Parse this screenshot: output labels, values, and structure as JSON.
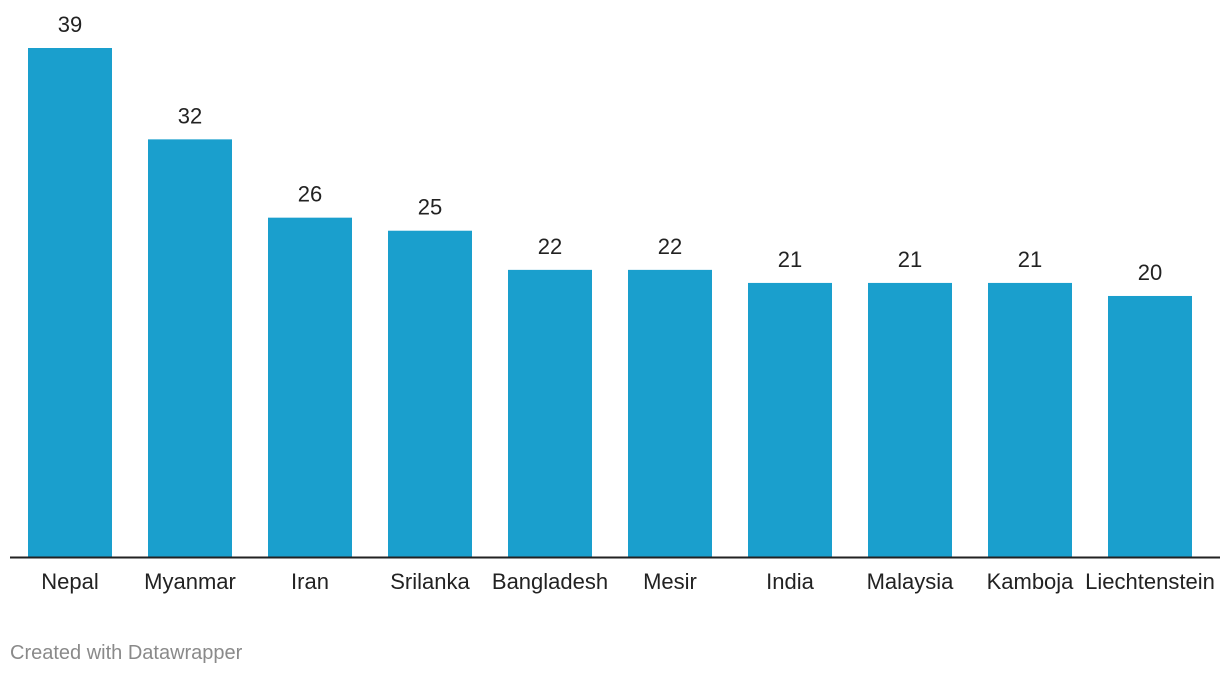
{
  "chart_data": {
    "type": "bar",
    "categories": [
      "Nepal",
      "Myanmar",
      "Iran",
      "Srilanka",
      "Bangladesh",
      "Mesir",
      "India",
      "Malaysia",
      "Kamboja",
      "Liechtenstein"
    ],
    "values": [
      39,
      32,
      26,
      25,
      22,
      22,
      21,
      21,
      21,
      20
    ],
    "title": "",
    "xlabel": "",
    "ylabel": "",
    "ylim": [
      0,
      39
    ],
    "grid": false,
    "bar_color": "#1a9fcd",
    "baseline_color": "#222222"
  },
  "footer": {
    "credit": "Created with Datawrapper"
  }
}
